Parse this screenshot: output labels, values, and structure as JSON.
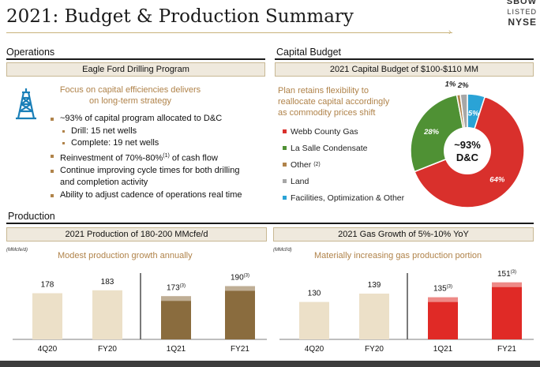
{
  "header": {
    "title": "2021: Budget & Production Summary",
    "ticker_code": "SBOW",
    "ticker_listed": "LISTED",
    "ticker_exchange": "NYSE"
  },
  "operations": {
    "title": "Operations",
    "box_header": "Eagle Ford Drilling Program",
    "tagline_1": "Focus on capital efficiencies delivers",
    "tagline_2": "on long-term strategy",
    "bullets": [
      "~93% of capital program allocated to D&C",
      "Drill: 15 net wells",
      "Complete: 19 net wells",
      "Reinvestment of 70%-80%",
      "Continue improving cycle times for both drilling",
      "and completion activity",
      "Ability to adjust cadence of operations real time"
    ],
    "reinvestment_sup": "(1)",
    "reinvestment_suffix": " of cash flow"
  },
  "capital_budget": {
    "title": "Capital Budget",
    "box_header": "2021 Capital Budget of $100-$110 MM",
    "tagline": [
      "Plan retains flexibility to",
      "reallocate capital accordingly",
      "as commodity prices shift"
    ],
    "legend": [
      {
        "label": "Webb County Gas",
        "color": "#d9302c"
      },
      {
        "label": "La Salle Condensate",
        "color": "#4f9134"
      },
      {
        "label": "Other",
        "sup": "(2)",
        "color": "#b0834a"
      },
      {
        "label": "Land",
        "color": "#a7a7a7"
      },
      {
        "label": "Facilities, Optimization & Other",
        "color": "#2aa3d6"
      }
    ],
    "pie_center_1": "~93%",
    "pie_center_2": "D&C",
    "pie_labels": [
      "64%",
      "28%",
      "1%",
      "2%",
      "5%"
    ]
  },
  "production": {
    "title": "Production",
    "left": {
      "box_header": "2021 Production of 180-200 MMcfe/d",
      "unit": "(MMcfe/d)",
      "tagline": "Modest production growth annually"
    },
    "right": {
      "box_header": "2021 Gas Growth of 5%-10% YoY",
      "unit": "(MMcf/d)",
      "tagline": "Materially increasing gas production portion"
    }
  },
  "chart_data": [
    {
      "type": "pie",
      "title": "2021 Capital Budget of $100-$110 MM",
      "categories": [
        "Webb County Gas",
        "La Salle Condensate",
        "Other",
        "Land",
        "Facilities, Optimization & Other"
      ],
      "values": [
        64,
        28,
        1,
        2,
        5
      ],
      "colors": [
        "#d9302c",
        "#4f9134",
        "#b0834a",
        "#a7a7a7",
        "#2aa3d6"
      ]
    },
    {
      "type": "bar",
      "title": "2021 Production of 180-200 MMcfe/d",
      "ylabel": "(MMcfe/d)",
      "categories": [
        "4Q20",
        "FY20",
        "1Q21",
        "FY21"
      ],
      "values": [
        178,
        183,
        173,
        190
      ],
      "value_labels": [
        "178",
        "183",
        "173",
        "190"
      ],
      "superscripts": [
        "",
        "",
        "(3)",
        "(3)"
      ],
      "colors": [
        "#ece0c8",
        "#ece0c8",
        "#8a6c3e",
        "#8a6c3e"
      ]
    },
    {
      "type": "bar",
      "title": "2021 Gas Growth of 5%-10% YoY",
      "ylabel": "(MMcf/d)",
      "categories": [
        "4Q20",
        "FY20",
        "1Q21",
        "FY21"
      ],
      "values": [
        130,
        139,
        135,
        151
      ],
      "value_labels": [
        "130",
        "139",
        "135",
        "151"
      ],
      "superscripts": [
        "",
        "",
        "(3)",
        "(3)"
      ],
      "colors": [
        "#ece0c8",
        "#ece0c8",
        "#e02a26",
        "#e02a26"
      ]
    }
  ]
}
